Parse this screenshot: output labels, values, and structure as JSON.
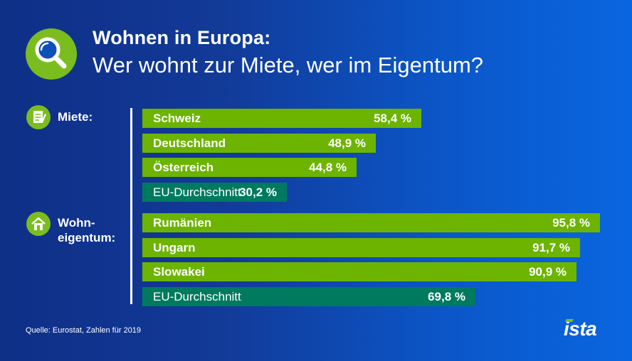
{
  "header": {
    "title": "Wohnen in Europa:",
    "subtitle": "Wer wohnt zur Miete, wer im Eigentum?"
  },
  "sections": {
    "rent_label": "Miete:",
    "own_label_line1": "Wohn-",
    "own_label_line2": "eigentum:"
  },
  "colors": {
    "bar_country": "#6cb400",
    "bar_eu": "#007a5e",
    "accent_green": "#7bbd1e"
  },
  "chart_data": {
    "type": "bar",
    "orientation": "horizontal",
    "title": "Wohnen in Europa: Wer wohnt zur Miete, wer im Eigentum?",
    "unit": "%",
    "xlim": [
      0,
      100
    ],
    "groups": [
      {
        "name": "Miete:",
        "items": [
          {
            "label": "Schweiz",
            "value": 58.4,
            "display": "58,4 %",
            "kind": "country"
          },
          {
            "label": "Deutschland",
            "value": 48.9,
            "display": "48,9 %",
            "kind": "country"
          },
          {
            "label": "Österreich",
            "value": 44.8,
            "display": "44,8 %",
            "kind": "country"
          },
          {
            "label": "EU-Durchschnitt",
            "value": 30.2,
            "display": "30,2 %",
            "kind": "eu"
          }
        ]
      },
      {
        "name": "Wohneigentum:",
        "items": [
          {
            "label": "Rumänien",
            "value": 95.8,
            "display": "95,8 %",
            "kind": "country"
          },
          {
            "label": "Ungarn",
            "value": 91.7,
            "display": "91,7 %",
            "kind": "country"
          },
          {
            "label": "Slowakei",
            "value": 90.9,
            "display": "90,9 %",
            "kind": "country"
          },
          {
            "label": "EU-Durchschnitt",
            "value": 69.8,
            "display": "69,8 %",
            "kind": "eu"
          }
        ]
      }
    ]
  },
  "footer": {
    "source": "Quelle: Eurostat, Zahlen für 2019",
    "logo": "ista"
  }
}
